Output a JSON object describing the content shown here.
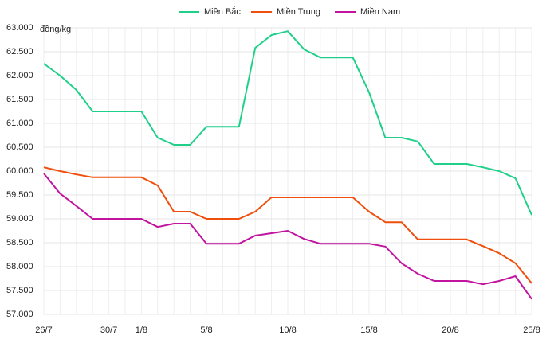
{
  "chart_data": {
    "type": "line",
    "y_unit": "đồng/kg",
    "categories": [
      "26/7",
      null,
      null,
      null,
      "30/7",
      null,
      "1/8",
      null,
      null,
      null,
      "5/8",
      null,
      null,
      null,
      null,
      "10/8",
      null,
      null,
      null,
      null,
      "15/8",
      null,
      null,
      null,
      null,
      "20/8",
      null,
      null,
      null,
      null,
      "25/8"
    ],
    "series": [
      {
        "name": "Miền Bắc",
        "color": "#1fd08a",
        "values": [
          62250,
          62000,
          61700,
          61250,
          61250,
          61250,
          61250,
          60700,
          60550,
          60550,
          60930,
          60930,
          60930,
          62580,
          62850,
          62930,
          62550,
          62380,
          62380,
          62380,
          61650,
          60700,
          60700,
          60620,
          60150,
          60150,
          60150,
          60080,
          60000,
          59850,
          59080
        ]
      },
      {
        "name": "Miền Trung",
        "color": "#f04e0c",
        "values": [
          60080,
          60000,
          59930,
          59870,
          59870,
          59870,
          59870,
          59700,
          59150,
          59150,
          59000,
          59000,
          59000,
          59150,
          59450,
          59450,
          59450,
          59450,
          59450,
          59450,
          59150,
          58930,
          58930,
          58570,
          58570,
          58570,
          58570,
          58430,
          58280,
          58070,
          57650
        ]
      },
      {
        "name": "Miền Nam",
        "color": "#c2149e",
        "values": [
          59950,
          59530,
          59270,
          59000,
          59000,
          59000,
          59000,
          58830,
          58900,
          58900,
          58480,
          58480,
          58480,
          58650,
          58700,
          58750,
          58580,
          58480,
          58480,
          58480,
          58480,
          58420,
          58070,
          57850,
          57700,
          57700,
          57700,
          57630,
          57700,
          57800,
          57320
        ]
      }
    ],
    "ylim": [
      57000,
      63000
    ],
    "yticks": [
      {
        "value": 57000,
        "label": "57.000"
      },
      {
        "value": 57500,
        "label": "57.500"
      },
      {
        "value": 58000,
        "label": "58.000"
      },
      {
        "value": 58500,
        "label": "58.500"
      },
      {
        "value": 59000,
        "label": "59.000"
      },
      {
        "value": 59500,
        "label": "59.500"
      },
      {
        "value": 60000,
        "label": "60.000"
      },
      {
        "value": 60500,
        "label": "60.500"
      },
      {
        "value": 61000,
        "label": "61.000"
      },
      {
        "value": 61500,
        "label": "61.500"
      },
      {
        "value": 62000,
        "label": "62.000"
      },
      {
        "value": 62500,
        "label": "62.500"
      },
      {
        "value": 63000,
        "label": "63.000"
      }
    ],
    "grid": true,
    "legend": "top"
  }
}
